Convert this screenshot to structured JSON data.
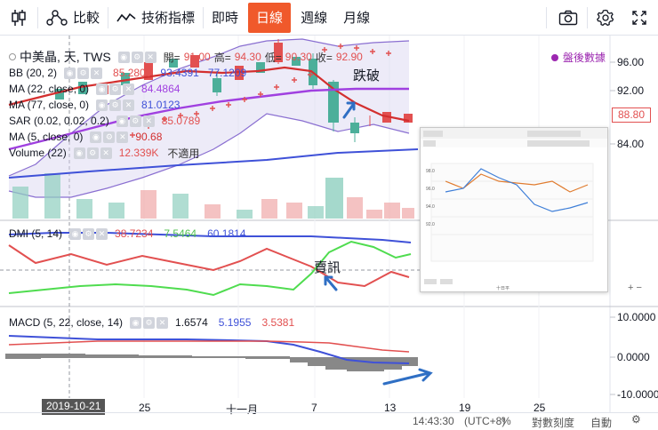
{
  "toolbar": {
    "compare": "比較",
    "indicators": "技術指標",
    "realtime": "即時",
    "daily": "日線",
    "weekly": "週線",
    "monthly": "月線"
  },
  "legend": {
    "symbol": "中美晶, 天, TWS",
    "open_label": "開=",
    "open": "91.00",
    "high_label": "高=",
    "high": "94.30",
    "low_label": "低=",
    "low": "90.30",
    "close_label": "收=",
    "close": "92.90",
    "bb_name": "BB (20, 2)",
    "bb_v1": "85.2800",
    "bb_v2": "93.4391",
    "bb_v3": "77.1209",
    "ma22_name": "MA (22, close, 0)",
    "ma22_v": "84.4864",
    "ma77_name": "MA (77, close, 0)",
    "ma77_v": "81.0123",
    "sar_name": "SAR (0.02, 0.02, 0.2)",
    "sar_v": "85.0789",
    "ma5_name": "MA (5, close, 0)",
    "ma5_v": "90.68",
    "vol_name": "Volume (22)",
    "vol_v": "12.339K",
    "vol_na": "不適用"
  },
  "after_hours": "盤後數據",
  "annotations": {
    "breakdown": "跌破",
    "signal": "賣訊"
  },
  "dmi": {
    "name": "DMI (5, 14)",
    "v1": "38.7234",
    "v2": "7.5464",
    "v3": "60.1814"
  },
  "macd": {
    "name": "MACD (5, 22, close, 14)",
    "v1": "1.6574",
    "v2": "5.1955",
    "v3": "3.5381"
  },
  "price_axis": [
    "96.00",
    "92.00",
    "88.80",
    "84.00"
  ],
  "last_price": "88.80",
  "macd_axis": [
    "10.0000",
    "0.0000",
    "-10.0000"
  ],
  "x_ticks": [
    "25",
    "十一月",
    "7",
    "13",
    "19",
    "25"
  ],
  "crosshair_date": "2019-10-21",
  "bottom": {
    "time": "14:43:30",
    "tz": "(UTC+8)",
    "pct": "%",
    "log": "對數刻度",
    "auto": "自動"
  },
  "colors": {
    "accent": "#f0592b",
    "up": "#e25050",
    "down": "#4caf9a",
    "bb": "#8a6fd1",
    "ma_red": "#d32f2f",
    "ma_purple": "#a040e0",
    "ma_blue": "#3f51d8"
  },
  "mini": {
    "series1": "日",
    "series2": "倍",
    "xlabel": "十日平",
    "pts": [
      "91.5",
      "91.3",
      "98.0",
      "92.5",
      "93.5",
      "86.0",
      "84.2",
      "87.3",
      "89.4"
    ]
  }
}
